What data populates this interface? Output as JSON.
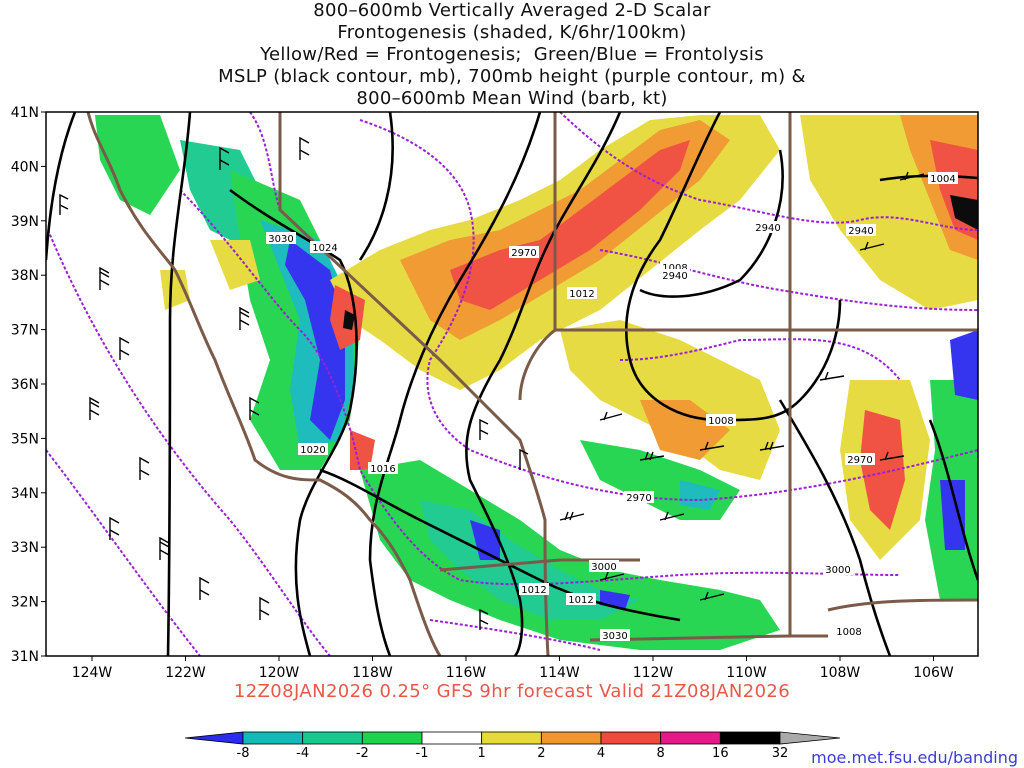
{
  "title": {
    "lines": [
      "800–600mb Vertically Averaged 2-D Scalar",
      "Frontogenesis (shaded, K/6hr/100km)",
      "Yellow/Red = Frontogenesis;  Green/Blue = Frontolysis",
      "MSLP (black contour, mb), 700mb height (purple contour, m) &",
      "800–600mb Mean Wind (barb, kt)"
    ]
  },
  "axes": {
    "lat_labels": [
      "41N",
      "40N",
      "39N",
      "38N",
      "37N",
      "36N",
      "35N",
      "34N",
      "33N",
      "32N",
      "31N"
    ],
    "lon_labels": [
      "124W",
      "122W",
      "120W",
      "118W",
      "116W",
      "114W",
      "112W",
      "110W",
      "108W",
      "106W"
    ]
  },
  "contour_labels": {
    "mslp": [
      "1024",
      "1020",
      "1016",
      "1012",
      "1012",
      "1012",
      "1008",
      "1008",
      "1008",
      "1004"
    ],
    "height": [
      "3030",
      "2970",
      "2940",
      "2940",
      "2940",
      "2970",
      "2970",
      "3000",
      "3000",
      "3030"
    ]
  },
  "valid_time": "12Z08JAN2026 0.25° GFS 9hr forecast Valid 21Z08JAN2026",
  "colorbar": {
    "labels": [
      "-8",
      "-4",
      "-2",
      "-1",
      "1",
      "2",
      "4",
      "8",
      "16",
      "32"
    ],
    "colors": [
      "#2b2bf0",
      "#12b9b9",
      "#16c98c",
      "#1ed44a",
      "#ffffff",
      "#e6da3a",
      "#f0962a",
      "#f04a3a",
      "#e6188a",
      "#000000",
      "#aaaaaa"
    ]
  },
  "credit": "moe.met.fsu.edu/banding",
  "colors": {
    "frame": "#000000",
    "coast": "#7a5a48",
    "height_contour": "#9a1fd6",
    "mslp_contour": "#000000",
    "valid_text": "#e8584a",
    "credit_text": "#3b3bd6"
  }
}
